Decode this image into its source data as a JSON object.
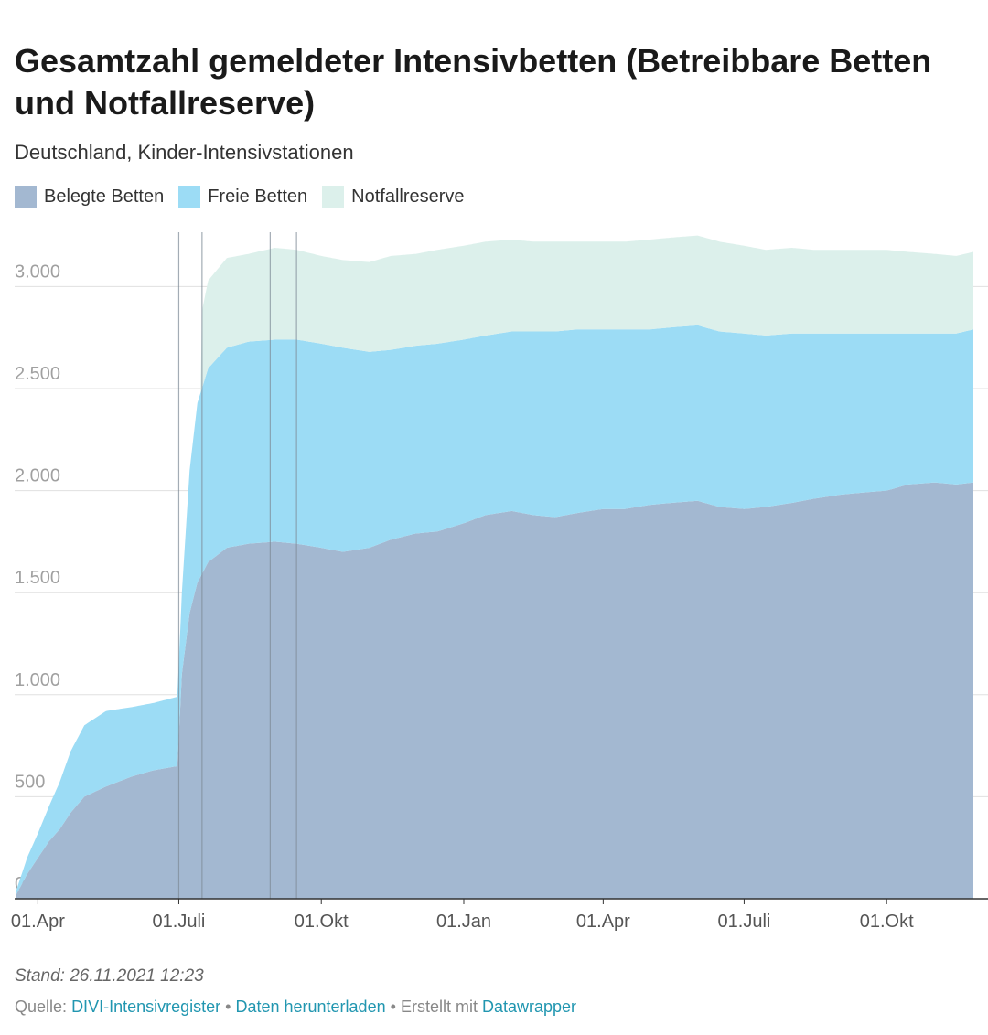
{
  "title": "Gesamtzahl gemeldeter Intensivbetten (Betreibbare Betten und Notfallreserve)",
  "subtitle": "Deutschland, Kinder-Intensivstationen",
  "legend": [
    {
      "label": "Belegte Betten",
      "color": "#a3b8d1"
    },
    {
      "label": "Freie Betten",
      "color": "#9cdcf5"
    },
    {
      "label": "Notfallreserve",
      "color": "#dcf0eb"
    }
  ],
  "footer": {
    "stand": "Stand: 26.11.2021 12:23",
    "quelle_label": "Quelle:",
    "quelle_link": "DIVI-Intensivregister",
    "download": "Daten herunterladen",
    "sep": "•",
    "erstellt": "Erstellt mit",
    "tool": "Datawrapper"
  },
  "chart_data": {
    "type": "area",
    "stacked": true,
    "ylim": [
      0,
      3300
    ],
    "yticks": [
      0,
      500,
      1000,
      1500,
      2000,
      2500,
      3000
    ],
    "ytick_labels": [
      "0",
      "500",
      "1.000",
      "1.500",
      "2.000",
      "2.500",
      "3.000"
    ],
    "xlim": [
      "2020-03-17",
      "2021-11-26"
    ],
    "xticks": [
      "2020-04-01",
      "2020-07-01",
      "2020-10-01",
      "2021-01-01",
      "2021-04-01",
      "2021-07-01",
      "2021-10-01"
    ],
    "xtick_labels": [
      "01.Apr",
      "01.Juli",
      "01.Okt",
      "01.Jan",
      "01.Apr",
      "01.Juli",
      "01.Okt"
    ],
    "vertical_markers": [
      "2020-07-01",
      "2020-07-16",
      "2020-08-29",
      "2020-09-15"
    ],
    "grid": true,
    "series": [
      {
        "name": "Belegte Betten",
        "color": "#a3b8d1",
        "points": [
          [
            "2020-03-18",
            20
          ],
          [
            "2020-03-25",
            120
          ],
          [
            "2020-04-01",
            200
          ],
          [
            "2020-04-08",
            280
          ],
          [
            "2020-04-15",
            340
          ],
          [
            "2020-04-22",
            420
          ],
          [
            "2020-05-01",
            500
          ],
          [
            "2020-05-15",
            550
          ],
          [
            "2020-06-01",
            600
          ],
          [
            "2020-06-15",
            630
          ],
          [
            "2020-06-30",
            650
          ],
          [
            "2020-07-03",
            1100
          ],
          [
            "2020-07-08",
            1400
          ],
          [
            "2020-07-13",
            1550
          ],
          [
            "2020-07-20",
            1650
          ],
          [
            "2020-08-01",
            1720
          ],
          [
            "2020-08-15",
            1740
          ],
          [
            "2020-09-01",
            1750
          ],
          [
            "2020-09-15",
            1740
          ],
          [
            "2020-10-01",
            1720
          ],
          [
            "2020-10-15",
            1700
          ],
          [
            "2020-11-01",
            1720
          ],
          [
            "2020-11-15",
            1760
          ],
          [
            "2020-12-01",
            1790
          ],
          [
            "2020-12-15",
            1800
          ],
          [
            "2021-01-01",
            1840
          ],
          [
            "2021-01-15",
            1880
          ],
          [
            "2021-02-01",
            1900
          ],
          [
            "2021-02-15",
            1880
          ],
          [
            "2021-03-01",
            1870
          ],
          [
            "2021-03-15",
            1890
          ],
          [
            "2021-04-01",
            1910
          ],
          [
            "2021-04-15",
            1910
          ],
          [
            "2021-05-01",
            1930
          ],
          [
            "2021-05-15",
            1940
          ],
          [
            "2021-06-01",
            1950
          ],
          [
            "2021-06-15",
            1920
          ],
          [
            "2021-07-01",
            1910
          ],
          [
            "2021-07-15",
            1920
          ],
          [
            "2021-08-01",
            1940
          ],
          [
            "2021-08-15",
            1960
          ],
          [
            "2021-09-01",
            1980
          ],
          [
            "2021-09-15",
            1990
          ],
          [
            "2021-10-01",
            2000
          ],
          [
            "2021-10-15",
            2030
          ],
          [
            "2021-11-01",
            2040
          ],
          [
            "2021-11-15",
            2030
          ],
          [
            "2021-11-26",
            2040
          ]
        ]
      },
      {
        "name": "Freie Betten",
        "color": "#9cdcf5",
        "points": [
          [
            "2020-03-18",
            20
          ],
          [
            "2020-03-25",
            80
          ],
          [
            "2020-04-01",
            120
          ],
          [
            "2020-04-08",
            170
          ],
          [
            "2020-04-15",
            230
          ],
          [
            "2020-04-22",
            300
          ],
          [
            "2020-05-01",
            350
          ],
          [
            "2020-05-15",
            370
          ],
          [
            "2020-06-01",
            340
          ],
          [
            "2020-06-15",
            330
          ],
          [
            "2020-06-30",
            340
          ],
          [
            "2020-07-03",
            400
          ],
          [
            "2020-07-08",
            700
          ],
          [
            "2020-07-13",
            880
          ],
          [
            "2020-07-20",
            950
          ],
          [
            "2020-08-01",
            980
          ],
          [
            "2020-08-15",
            990
          ],
          [
            "2020-09-01",
            990
          ],
          [
            "2020-09-15",
            1000
          ],
          [
            "2020-10-01",
            1000
          ],
          [
            "2020-10-15",
            1000
          ],
          [
            "2020-11-01",
            960
          ],
          [
            "2020-11-15",
            930
          ],
          [
            "2020-12-01",
            920
          ],
          [
            "2020-12-15",
            920
          ],
          [
            "2021-01-01",
            900
          ],
          [
            "2021-01-15",
            880
          ],
          [
            "2021-02-01",
            880
          ],
          [
            "2021-02-15",
            900
          ],
          [
            "2021-03-01",
            910
          ],
          [
            "2021-03-15",
            900
          ],
          [
            "2021-04-01",
            880
          ],
          [
            "2021-04-15",
            880
          ],
          [
            "2021-05-01",
            860
          ],
          [
            "2021-05-15",
            860
          ],
          [
            "2021-06-01",
            860
          ],
          [
            "2021-06-15",
            860
          ],
          [
            "2021-07-01",
            860
          ],
          [
            "2021-07-15",
            840
          ],
          [
            "2021-08-01",
            830
          ],
          [
            "2021-08-15",
            810
          ],
          [
            "2021-09-01",
            790
          ],
          [
            "2021-09-15",
            780
          ],
          [
            "2021-10-01",
            770
          ],
          [
            "2021-10-15",
            740
          ],
          [
            "2021-11-01",
            730
          ],
          [
            "2021-11-15",
            740
          ],
          [
            "2021-11-26",
            750
          ]
        ]
      },
      {
        "name": "Notfallreserve",
        "color": "#dcf0eb",
        "points": [
          [
            "2020-07-15",
            0
          ],
          [
            "2020-07-16",
            380
          ],
          [
            "2020-07-20",
            430
          ],
          [
            "2020-08-01",
            440
          ],
          [
            "2020-08-15",
            430
          ],
          [
            "2020-09-01",
            450
          ],
          [
            "2020-09-15",
            440
          ],
          [
            "2020-10-01",
            430
          ],
          [
            "2020-10-15",
            430
          ],
          [
            "2020-11-01",
            440
          ],
          [
            "2020-11-15",
            460
          ],
          [
            "2020-12-01",
            450
          ],
          [
            "2020-12-15",
            460
          ],
          [
            "2021-01-01",
            460
          ],
          [
            "2021-01-15",
            460
          ],
          [
            "2021-02-01",
            450
          ],
          [
            "2021-02-15",
            440
          ],
          [
            "2021-03-01",
            440
          ],
          [
            "2021-03-15",
            430
          ],
          [
            "2021-04-01",
            430
          ],
          [
            "2021-04-15",
            430
          ],
          [
            "2021-05-01",
            440
          ],
          [
            "2021-05-15",
            440
          ],
          [
            "2021-06-01",
            440
          ],
          [
            "2021-06-15",
            440
          ],
          [
            "2021-07-01",
            430
          ],
          [
            "2021-07-15",
            420
          ],
          [
            "2021-08-01",
            420
          ],
          [
            "2021-08-15",
            410
          ],
          [
            "2021-09-01",
            410
          ],
          [
            "2021-09-15",
            410
          ],
          [
            "2021-10-01",
            410
          ],
          [
            "2021-10-15",
            400
          ],
          [
            "2021-11-01",
            390
          ],
          [
            "2021-11-15",
            380
          ],
          [
            "2021-11-26",
            380
          ]
        ]
      }
    ]
  }
}
